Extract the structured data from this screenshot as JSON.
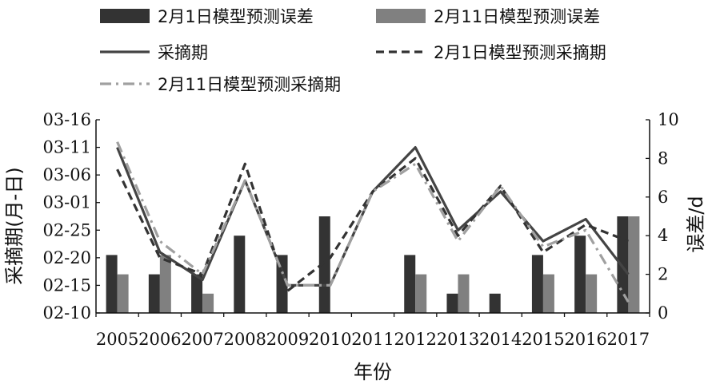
{
  "chart_data": {
    "type": "bar+line",
    "categories": [
      "2005",
      "2006",
      "2007",
      "2008",
      "2009",
      "2010",
      "2011",
      "2012",
      "2013",
      "2014",
      "2015",
      "2016",
      "2017"
    ],
    "xlabel": "年份",
    "ylabel_left": "采摘期(月-日)",
    "ylabel_right": "误差/d",
    "left_axis": {
      "ticks": [
        "03-16",
        "03-11",
        "03-06",
        "03-01",
        "02-25",
        "02-20",
        "02-15",
        "02-10"
      ],
      "ylim_days": [
        0,
        35
      ],
      "note": "days counted from 02-10; 02-10=0, 03-16=35"
    },
    "right_axis": {
      "ticks": [
        "10",
        "8",
        "6",
        "4",
        "2",
        "0"
      ],
      "ylim": [
        0,
        10
      ]
    },
    "bar_series": [
      {
        "name": "2月1日模型预测误差",
        "color": "#333333",
        "values": [
          3,
          2,
          2,
          4,
          3,
          5,
          0,
          3,
          1,
          1,
          3,
          4,
          5
        ]
      },
      {
        "name": "2月11日模型预测误差",
        "color": "#808080",
        "values": [
          2,
          3,
          1,
          0,
          0,
          0,
          0,
          2,
          2,
          0,
          2,
          2,
          5
        ]
      }
    ],
    "line_series": [
      {
        "name": "采摘期",
        "style": "solid",
        "color": "#444444",
        "values_days": [
          30,
          11,
          6,
          24,
          5,
          5,
          22,
          30,
          15,
          22,
          13,
          17,
          7
        ]
      },
      {
        "name": "2月1日模型预测采摘期",
        "style": "dashed",
        "color": "#333333",
        "values_days": [
          26,
          10,
          7,
          27,
          4,
          10,
          22,
          28,
          14,
          23,
          11,
          16,
          13
        ]
      },
      {
        "name": "2月11日模型预测采摘期",
        "style": "dashdot",
        "color": "#a0a0a0",
        "values_days": [
          31,
          13,
          7,
          24,
          5,
          5,
          22,
          27,
          13,
          23,
          12,
          15,
          2
        ]
      }
    ],
    "legend": [
      {
        "label": "2月1日模型预测误差",
        "kind": "bar",
        "color": "#333333"
      },
      {
        "label": "2月11日模型预测误差",
        "kind": "bar",
        "color": "#808080"
      },
      {
        "label": "采摘期",
        "kind": "line",
        "style": "solid",
        "color": "#444444"
      },
      {
        "label": "2月1日模型预测采摘期",
        "kind": "line",
        "style": "dashed",
        "color": "#333333"
      },
      {
        "label": "2月11日模型预测采摘期",
        "kind": "line",
        "style": "dashdot",
        "color": "#a0a0a0"
      }
    ],
    "legend_position": "top",
    "grid": false
  }
}
